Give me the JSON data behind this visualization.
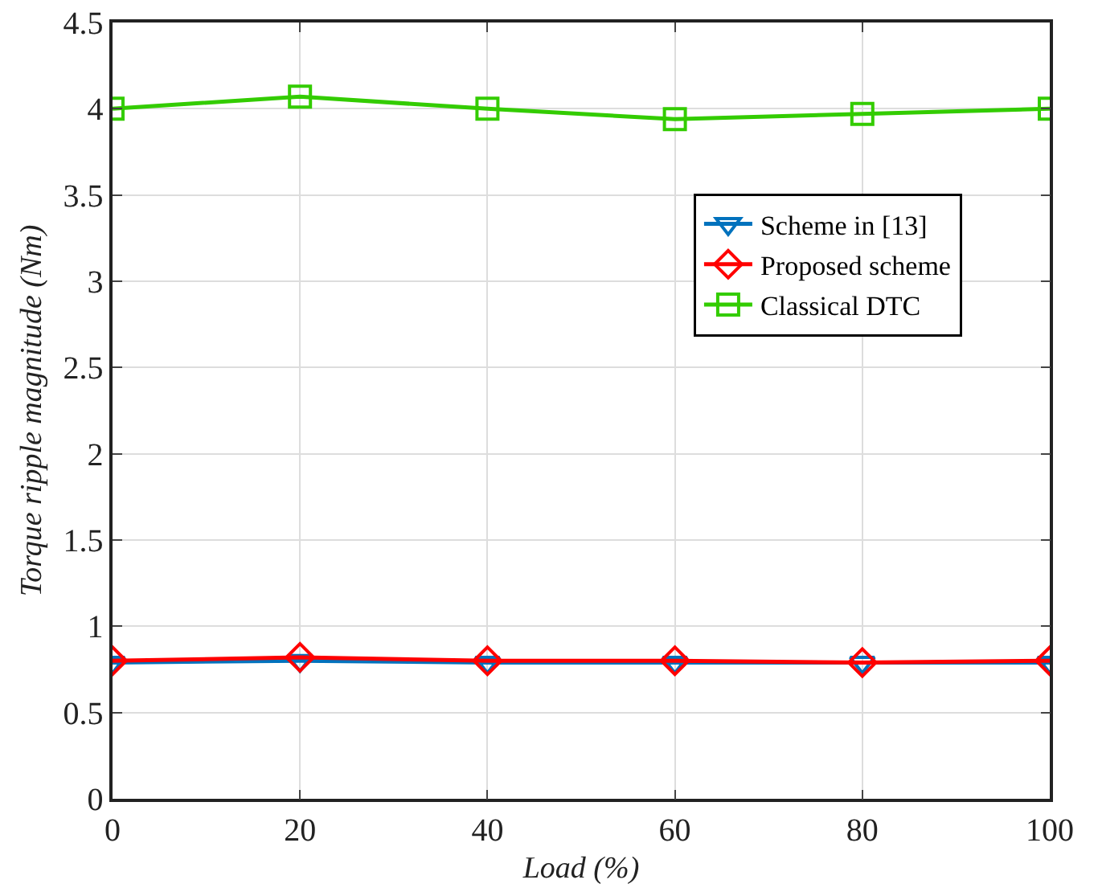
{
  "chart_data": {
    "type": "line",
    "xlabel": "Load (%)",
    "ylabel": "Torque ripple magnitude (Nm)",
    "x": [
      0,
      20,
      40,
      60,
      80,
      100
    ],
    "series": [
      {
        "name": "Scheme in [13]",
        "color": "#0072bd",
        "marker": "triangle",
        "values": [
          0.79,
          0.8,
          0.79,
          0.79,
          0.79,
          0.79
        ]
      },
      {
        "name": "Proposed scheme",
        "color": "#ff0000",
        "marker": "diamond",
        "values": [
          0.8,
          0.82,
          0.8,
          0.8,
          0.79,
          0.8
        ]
      },
      {
        "name": "Classical DTC",
        "color": "#33cc00",
        "marker": "square",
        "values": [
          4.0,
          4.07,
          4.0,
          3.94,
          3.97,
          4.0
        ]
      }
    ],
    "xlim": [
      0,
      100
    ],
    "xticks": [
      0,
      20,
      40,
      60,
      80,
      100
    ],
    "ylim": [
      0,
      4.5
    ],
    "yticks": [
      0,
      0.5,
      1,
      1.5,
      2,
      2.5,
      3,
      3.5,
      4,
      4.5
    ],
    "grid": true,
    "legend": "right",
    "line_style": "solid"
  }
}
